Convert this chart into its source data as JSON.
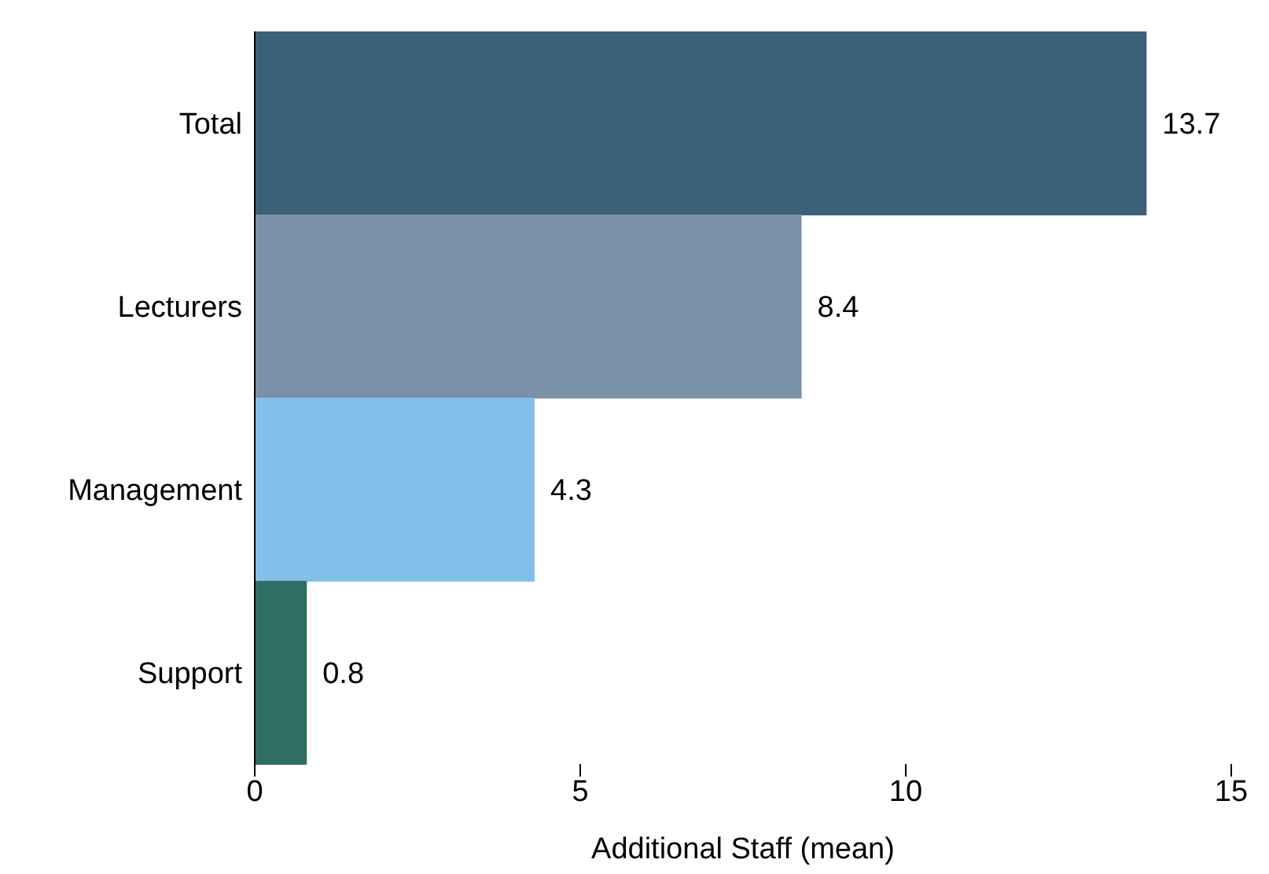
{
  "chart_data": {
    "type": "bar",
    "orientation": "horizontal",
    "xlabel": "Additional Staff (mean)",
    "categories": [
      "Total",
      "Lecturers",
      "Management",
      "Support"
    ],
    "values": [
      13.7,
      8.4,
      4.3,
      0.8
    ],
    "colors": [
      "#3d6079",
      "#7b91a8",
      "#82bfe9",
      "#2f6e62"
    ],
    "xlim": [
      0,
      15
    ],
    "xticks": [
      0,
      5,
      10,
      15
    ],
    "data_labels": true
  }
}
